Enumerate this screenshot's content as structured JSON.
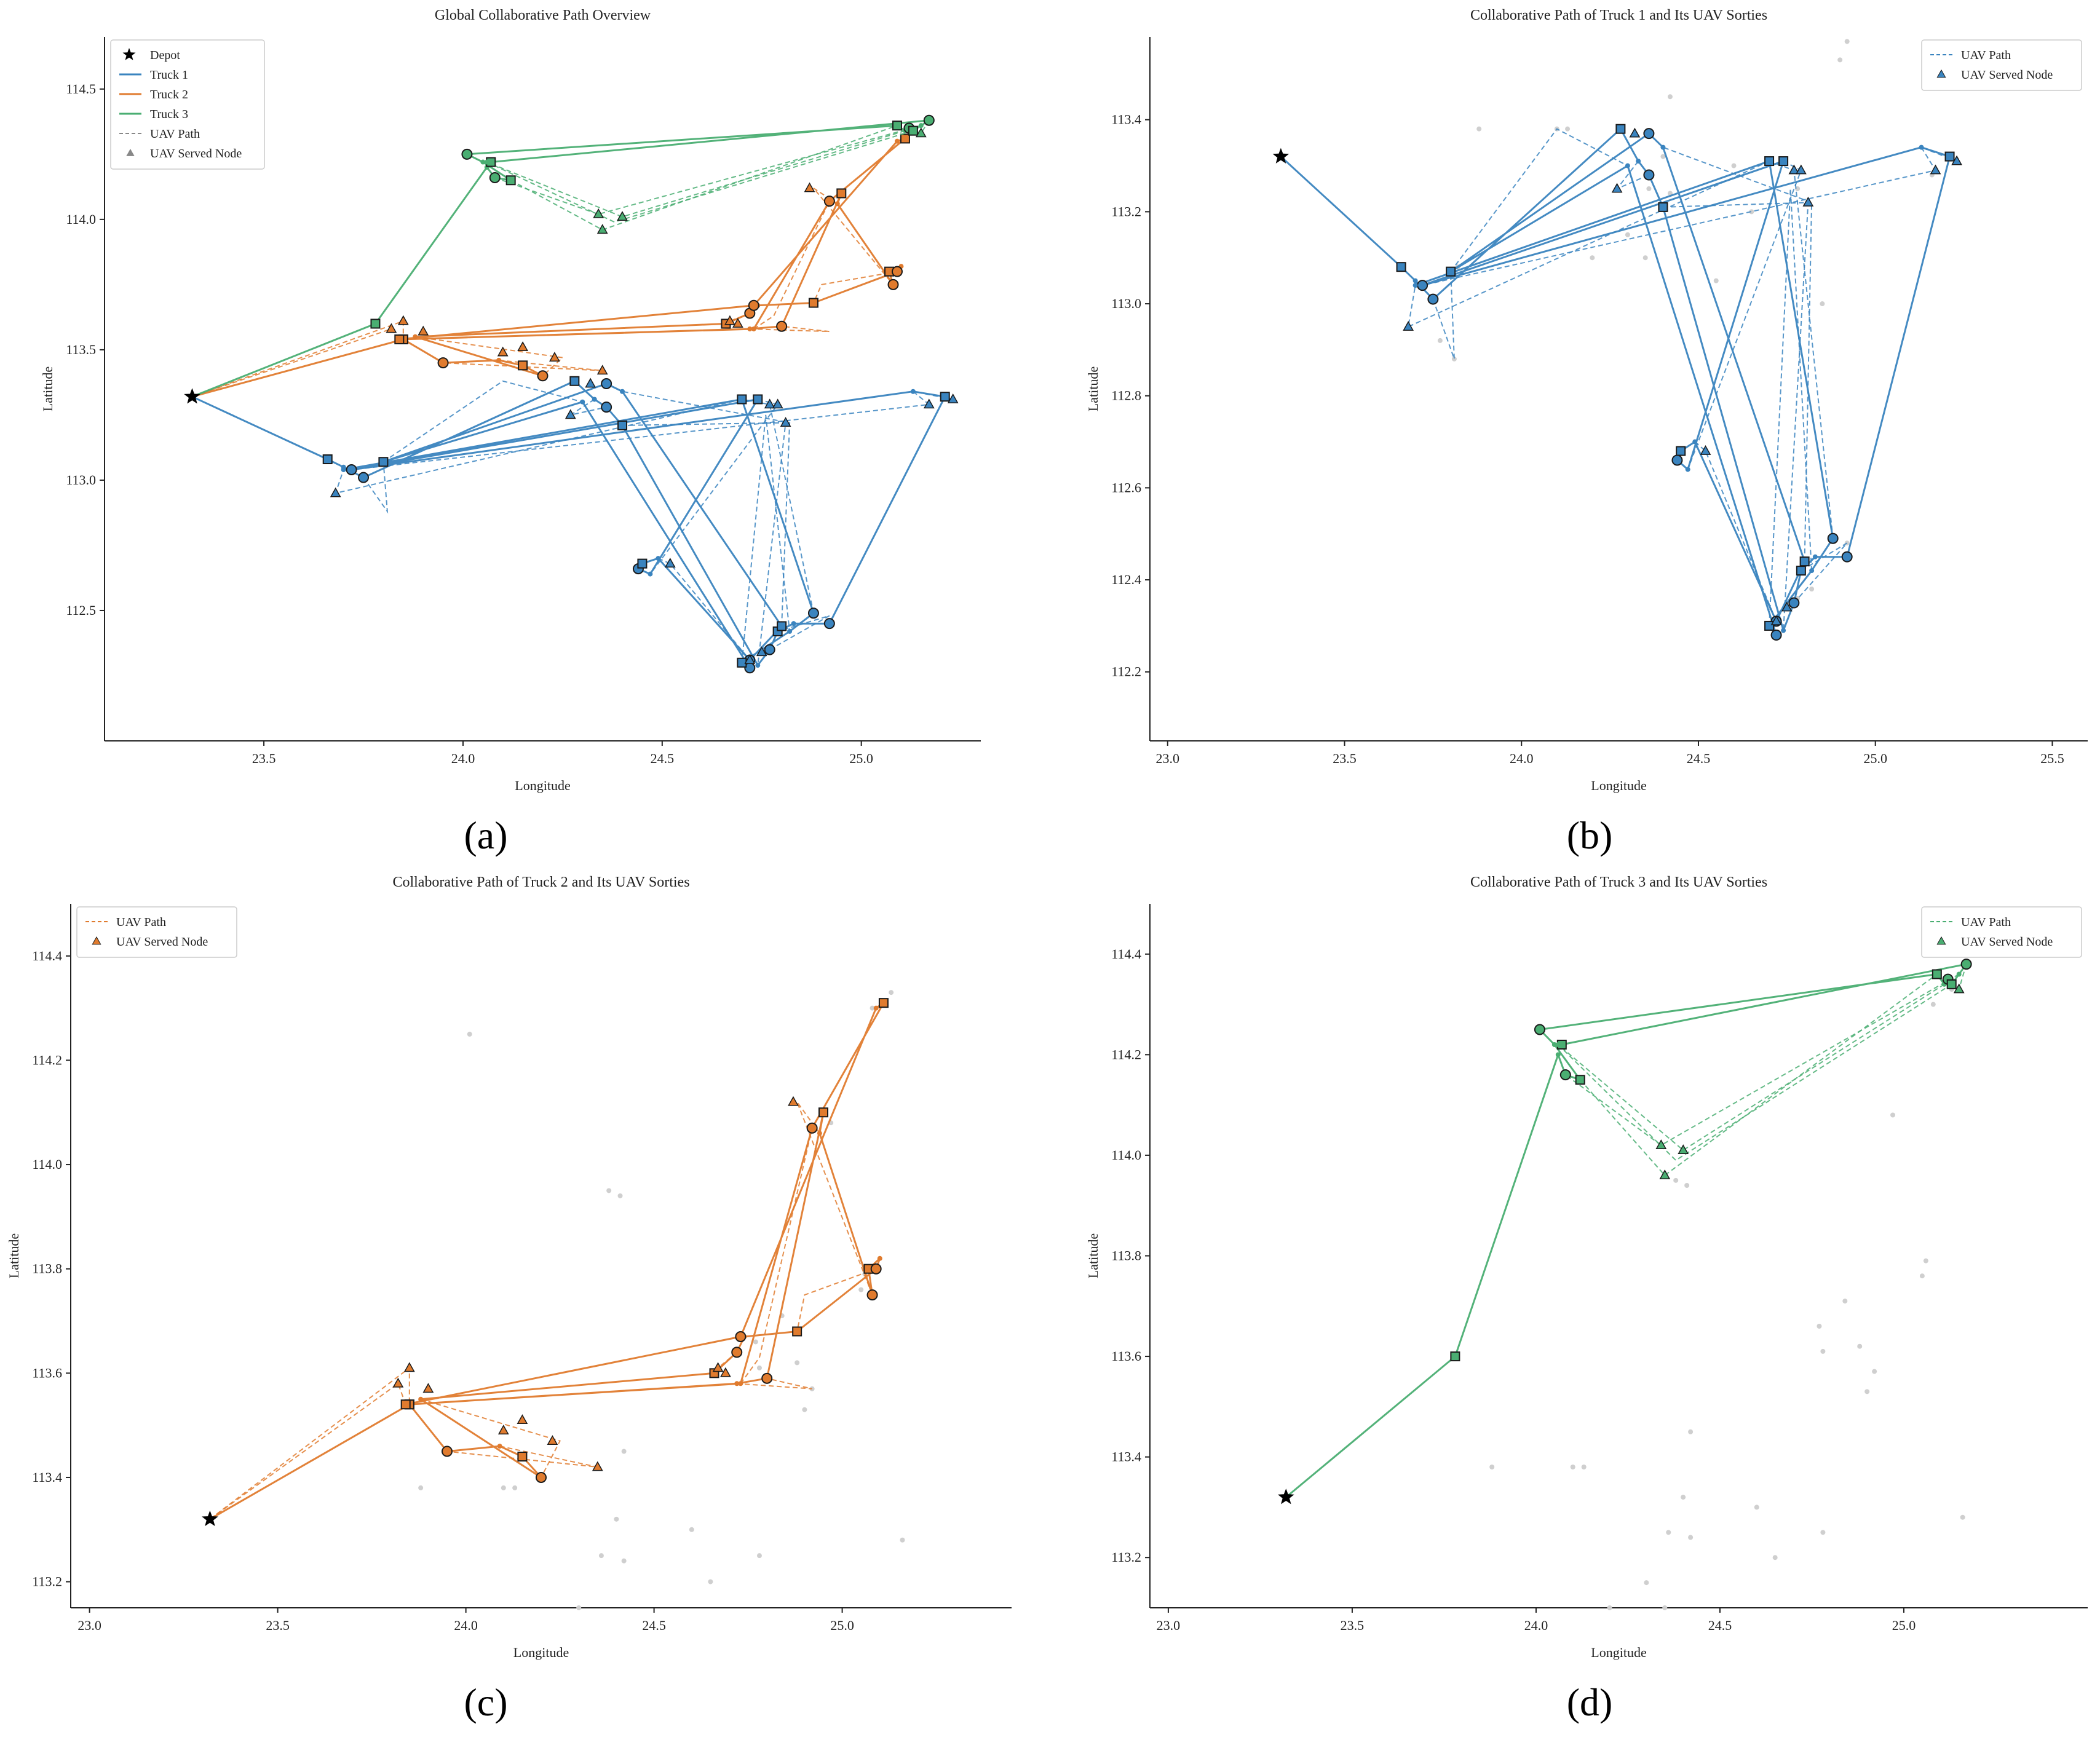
{
  "colors": {
    "truck1": "#3a84bf",
    "truck2": "#e07b2e",
    "truck3": "#4aae72",
    "uav_gray": "#888888",
    "background_node": "#cfcfcf",
    "depot": "#000000"
  },
  "depot": {
    "lon": 23.32,
    "lat": 113.32
  },
  "routes": {
    "truck1": [
      [
        23.32,
        113.32
      ],
      [
        23.66,
        113.08
      ],
      [
        23.7,
        113.05
      ],
      [
        23.75,
        113.01
      ],
      [
        24.28,
        113.38
      ],
      [
        24.33,
        113.31
      ],
      [
        24.36,
        113.28
      ],
      [
        24.4,
        113.21
      ],
      [
        24.74,
        112.29
      ],
      [
        24.77,
        112.35
      ],
      [
        24.79,
        112.42
      ],
      [
        24.83,
        112.45
      ],
      [
        24.92,
        112.45
      ],
      [
        25.21,
        113.32
      ],
      [
        25.13,
        113.34
      ],
      [
        23.72,
        113.04
      ],
      [
        24.74,
        113.31
      ],
      [
        24.47,
        112.64
      ],
      [
        24.44,
        112.66
      ],
      [
        24.45,
        112.68
      ],
      [
        24.49,
        112.7
      ],
      [
        24.72,
        112.31
      ],
      [
        24.8,
        112.44
      ],
      [
        24.4,
        113.34
      ],
      [
        24.36,
        113.37
      ],
      [
        23.8,
        113.07
      ],
      [
        24.3,
        113.3
      ],
      [
        24.72,
        112.28
      ],
      [
        24.7,
        112.3
      ],
      [
        24.82,
        112.42
      ],
      [
        24.88,
        112.49
      ],
      [
        24.7,
        113.31
      ],
      [
        23.7,
        113.04
      ]
    ],
    "truck2": [
      [
        23.32,
        113.32
      ],
      [
        23.85,
        113.54
      ],
      [
        24.72,
        113.58
      ],
      [
        24.8,
        113.59
      ],
      [
        24.95,
        114.1
      ],
      [
        24.94,
        114.06
      ],
      [
        25.08,
        113.75
      ],
      [
        25.07,
        113.8
      ],
      [
        25.1,
        113.82
      ],
      [
        25.09,
        113.8
      ],
      [
        24.88,
        113.68
      ],
      [
        24.74,
        113.67
      ],
      [
        24.72,
        113.64
      ],
      [
        24.66,
        113.6
      ],
      [
        23.88,
        113.55
      ],
      [
        24.2,
        113.4
      ],
      [
        24.15,
        113.44
      ],
      [
        24.09,
        113.46
      ],
      [
        23.95,
        113.45
      ],
      [
        23.85,
        113.54
      ],
      [
        24.73,
        113.58
      ],
      [
        24.92,
        114.07
      ],
      [
        25.11,
        114.31
      ],
      [
        25.09,
        114.3
      ],
      [
        24.73,
        113.67
      ],
      [
        23.84,
        113.54
      ]
    ],
    "truck3": [
      [
        23.32,
        113.32
      ],
      [
        23.78,
        113.6
      ],
      [
        24.06,
        114.2
      ],
      [
        24.08,
        114.16
      ],
      [
        24.12,
        114.15
      ],
      [
        24.05,
        114.22
      ],
      [
        24.01,
        114.25
      ],
      [
        25.09,
        114.36
      ],
      [
        25.11,
        114.34
      ],
      [
        25.12,
        114.35
      ],
      [
        25.13,
        114.34
      ],
      [
        25.15,
        114.36
      ],
      [
        25.17,
        114.38
      ],
      [
        24.07,
        114.22
      ],
      [
        24.06,
        114.22
      ]
    ]
  },
  "uav_paths": {
    "truck1": [
      [
        [
          23.75,
          113.01
        ],
        [
          23.81,
          112.88
        ],
        [
          23.8,
          113.07
        ]
      ],
      [
        [
          24.33,
          113.31
        ],
        [
          24.27,
          113.25
        ],
        [
          24.36,
          113.28
        ]
      ],
      [
        [
          24.4,
          113.21
        ],
        [
          24.81,
          113.22
        ],
        [
          24.74,
          112.29
        ]
      ],
      [
        [
          24.77,
          112.35
        ],
        [
          24.92,
          112.48
        ],
        [
          24.79,
          112.42
        ]
      ],
      [
        [
          25.13,
          113.34
        ],
        [
          25.17,
          113.29
        ],
        [
          23.72,
          113.04
        ]
      ],
      [
        [
          24.74,
          113.31
        ],
        [
          24.79,
          113.29
        ],
        [
          24.47,
          112.64
        ]
      ],
      [
        [
          24.49,
          112.7
        ],
        [
          24.52,
          112.68
        ],
        [
          24.72,
          112.31
        ]
      ],
      [
        [
          24.8,
          112.44
        ],
        [
          24.82,
          113.22
        ],
        [
          24.4,
          113.34
        ]
      ],
      [
        [
          23.8,
          113.07
        ],
        [
          24.1,
          113.38
        ],
        [
          24.3,
          113.3
        ]
      ],
      [
        [
          24.7,
          112.3
        ],
        [
          24.76,
          113.25
        ],
        [
          24.82,
          112.42
        ]
      ],
      [
        [
          24.88,
          112.49
        ],
        [
          24.77,
          113.29
        ],
        [
          24.7,
          113.31
        ]
      ],
      [
        [
          24.7,
          113.31
        ],
        [
          23.68,
          112.95
        ],
        [
          23.7,
          113.04
        ]
      ],
      [
        [
          25.21,
          113.32
        ],
        [
          25.23,
          113.31
        ],
        [
          25.13,
          113.34
        ]
      ]
    ],
    "truck2": [
      [
        [
          23.32,
          113.32
        ],
        [
          23.85,
          113.61
        ],
        [
          23.85,
          113.54
        ]
      ],
      [
        [
          24.72,
          113.58
        ],
        [
          24.92,
          113.57
        ],
        [
          24.8,
          113.59
        ]
      ],
      [
        [
          24.94,
          114.06
        ],
        [
          24.88,
          114.12
        ],
        [
          25.08,
          113.75
        ]
      ],
      [
        [
          25.09,
          113.8
        ],
        [
          24.9,
          113.75
        ],
        [
          24.88,
          113.68
        ]
      ],
      [
        [
          24.72,
          113.64
        ],
        [
          24.67,
          113.61
        ],
        [
          24.66,
          113.6
        ]
      ],
      [
        [
          23.88,
          113.55
        ],
        [
          24.25,
          113.47
        ],
        [
          24.2,
          113.4
        ]
      ],
      [
        [
          24.09,
          113.46
        ],
        [
          24.35,
          113.42
        ],
        [
          23.95,
          113.45
        ]
      ],
      [
        [
          24.73,
          113.58
        ],
        [
          24.78,
          113.63
        ],
        [
          24.92,
          114.07
        ]
      ],
      [
        [
          23.84,
          113.54
        ],
        [
          23.82,
          113.58
        ],
        [
          23.32,
          113.32
        ]
      ]
    ],
    "truck3": [
      [
        [
          24.12,
          114.15
        ],
        [
          24.35,
          113.96
        ],
        [
          25.09,
          114.36
        ]
      ],
      [
        [
          25.11,
          114.34
        ],
        [
          24.4,
          114.01
        ],
        [
          24.06,
          114.22
        ]
      ],
      [
        [
          25.15,
          114.36
        ],
        [
          24.34,
          114.02
        ],
        [
          24.08,
          114.16
        ]
      ],
      [
        [
          25.17,
          114.38
        ],
        [
          25.15,
          114.33
        ],
        [
          25.12,
          114.35
        ]
      ],
      [
        [
          24.06,
          114.22
        ],
        [
          24.38,
          113.99
        ],
        [
          25.13,
          114.34
        ]
      ]
    ]
  },
  "served_nodes": {
    "truck1": [
      [
        23.68,
        112.95
      ],
      [
        24.27,
        113.25
      ],
      [
        24.52,
        112.68
      ],
      [
        24.72,
        112.31
      ],
      [
        24.75,
        112.34
      ],
      [
        24.77,
        113.29
      ],
      [
        24.79,
        113.29
      ],
      [
        24.81,
        113.22
      ],
      [
        25.17,
        113.29
      ],
      [
        25.23,
        113.31
      ],
      [
        24.32,
        113.37
      ]
    ],
    "truck2": [
      [
        23.82,
        113.58
      ],
      [
        23.85,
        113.61
      ],
      [
        23.9,
        113.57
      ],
      [
        24.1,
        113.49
      ],
      [
        24.15,
        113.51
      ],
      [
        24.23,
        113.47
      ],
      [
        24.35,
        113.42
      ],
      [
        24.67,
        113.61
      ],
      [
        24.87,
        114.12
      ],
      [
        24.69,
        113.6
      ]
    ],
    "truck3": [
      [
        24.35,
        113.96
      ],
      [
        24.34,
        114.02
      ],
      [
        24.4,
        114.01
      ],
      [
        25.15,
        114.33
      ]
    ]
  },
  "customer_nodes": [
    [
      23.81,
      112.88
    ],
    [
      23.77,
      112.92
    ],
    [
      23.82,
      113.08
    ],
    [
      24.1,
      113.38
    ],
    [
      24.36,
      113.25
    ],
    [
      24.42,
      113.24
    ],
    [
      24.92,
      112.48
    ],
    [
      24.82,
      112.38
    ],
    [
      24.78,
      112.36
    ],
    [
      25.16,
      113.28
    ],
    [
      24.4,
      113.32
    ],
    [
      24.78,
      113.25
    ],
    [
      24.9,
      113.53
    ],
    [
      24.92,
      113.57
    ],
    [
      24.88,
      113.62
    ],
    [
      24.77,
      113.66
    ],
    [
      24.78,
      113.61
    ],
    [
      24.84,
      113.71
    ],
    [
      25.05,
      113.76
    ],
    [
      25.06,
      113.79
    ],
    [
      24.97,
      114.08
    ],
    [
      25.08,
      114.3
    ],
    [
      24.42,
      113.45
    ],
    [
      24.13,
      113.38
    ],
    [
      24.01,
      114.25
    ],
    [
      24.38,
      113.95
    ],
    [
      24.41,
      113.94
    ],
    [
      25.13,
      114.33
    ],
    [
      24.6,
      113.3
    ],
    [
      24.3,
      113.15
    ],
    [
      23.88,
      113.38
    ],
    [
      24.35,
      113.1
    ],
    [
      24.2,
      113.1
    ],
    [
      24.55,
      113.05
    ],
    [
      24.65,
      113.2
    ],
    [
      24.85,
      113.0
    ]
  ],
  "panels": [
    {
      "id": "a",
      "title": "Global Collaborative Path Overview",
      "xlabel": "Longitude",
      "ylabel": "Latitude",
      "xticks": [
        "23.5",
        "24.0",
        "24.5",
        "25.0"
      ],
      "yticks": [
        "112.5",
        "113.0",
        "113.5",
        "114.0",
        "114.5"
      ],
      "letter": "(a)"
    },
    {
      "id": "b",
      "title": "Collaborative Path of Truck 1 and Its UAV Sorties",
      "xlabel": "Longitude",
      "ylabel": "Latitude",
      "xticks": [
        "23.0",
        "23.5",
        "24.0",
        "24.5",
        "25.0",
        "25.5"
      ],
      "yticks": [
        "112.2",
        "112.4",
        "112.6",
        "112.8",
        "113.0",
        "113.2",
        "113.4"
      ],
      "letter": "(b)"
    },
    {
      "id": "c",
      "title": "Collaborative Path of Truck 2 and Its UAV Sorties",
      "xlabel": "Longitude",
      "ylabel": "Latitude",
      "xticks": [
        "23.0",
        "23.5",
        "24.0",
        "24.5",
        "25.0"
      ],
      "yticks": [
        "113.2",
        "113.4",
        "113.6",
        "113.8",
        "114.0",
        "114.2",
        "114.4"
      ],
      "letter": "(c)"
    },
    {
      "id": "d",
      "title": "Collaborative Path of Truck 3 and Its UAV Sorties",
      "xlabel": "Longitude",
      "ylabel": "Latitude",
      "xticks": [
        "23.0",
        "23.5",
        "24.0",
        "24.5",
        "25.0"
      ],
      "yticks": [
        "113.2",
        "113.4",
        "113.6",
        "113.8",
        "114.0",
        "114.2",
        "114.4"
      ],
      "letter": "(d)"
    }
  ],
  "legend_a": [
    "Depot",
    "Truck 1",
    "Truck 2",
    "Truck 3",
    "UAV Path",
    "UAV Served Node"
  ],
  "legend_single": [
    "UAV Path",
    "UAV Served Node"
  ],
  "chart_data": [
    {
      "type": "scatter",
      "title": "Global Collaborative Path Overview",
      "xlabel": "Longitude",
      "ylabel": "Latitude",
      "xlim": [
        23.1,
        25.3
      ],
      "ylim": [
        112.0,
        114.7
      ],
      "series": [
        "Depot",
        "Truck 1",
        "Truck 2",
        "Truck 3",
        "UAV Path",
        "UAV Served Node"
      ],
      "legend": "top-left"
    },
    {
      "type": "scatter",
      "title": "Collaborative Path of Truck 1 and Its UAV Sorties",
      "xlabel": "Longitude",
      "ylabel": "Latitude",
      "xlim": [
        22.95,
        25.6
      ],
      "ylim": [
        112.05,
        113.58
      ],
      "truck": "Truck 1",
      "legend": "top-right"
    },
    {
      "type": "scatter",
      "title": "Collaborative Path of Truck 2 and Its UAV Sorties",
      "xlabel": "Longitude",
      "ylabel": "Latitude",
      "xlim": [
        22.95,
        25.45
      ],
      "ylim": [
        113.15,
        114.5
      ],
      "truck": "Truck 2",
      "legend": "top-left"
    },
    {
      "type": "scatter",
      "title": "Collaborative Path of Truck 3 and Its UAV Sorties",
      "xlabel": "Longitude",
      "ylabel": "Latitude",
      "xlim": [
        22.95,
        25.5
      ],
      "ylim": [
        113.1,
        114.5
      ],
      "truck": "Truck 3",
      "legend": "top-right"
    }
  ]
}
